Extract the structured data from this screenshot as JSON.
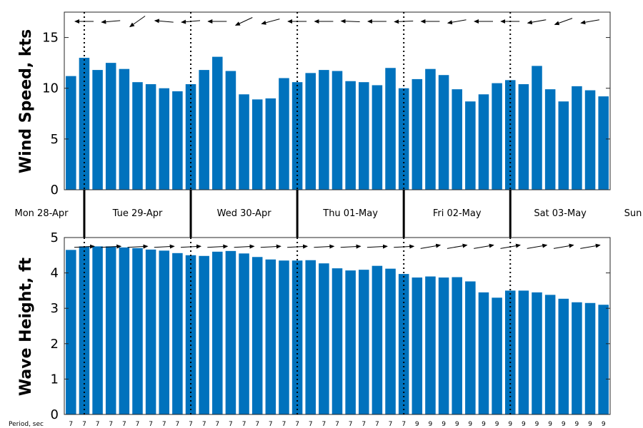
{
  "chart_data": [
    {
      "type": "bar",
      "ylabel": "Wind Speed, kts",
      "ylim": [
        0,
        17.5
      ],
      "yticks": [
        0,
        5,
        10,
        15
      ],
      "color": "#0072BD",
      "values": [
        11.2,
        13.0,
        11.8,
        12.5,
        11.9,
        10.6,
        10.4,
        10.0,
        9.7,
        10.4,
        11.8,
        13.1,
        11.7,
        9.4,
        8.9,
        9.0,
        11.0,
        10.6,
        11.5,
        11.8,
        11.7,
        10.7,
        10.6,
        10.3,
        12.0,
        10.0,
        10.9,
        11.9,
        11.3,
        9.9,
        8.7,
        9.4,
        10.5,
        10.8,
        10.4,
        12.2,
        9.9,
        8.7,
        10.2,
        9.8,
        9.2
      ],
      "direction_arrows": "westward, pointing left with slight tilt"
    },
    {
      "type": "bar",
      "ylabel": "Wave Height, ft",
      "ylim": [
        0,
        5
      ],
      "yticks": [
        0,
        1,
        2,
        3,
        4,
        5
      ],
      "color": "#0072BD",
      "values": [
        4.65,
        4.75,
        4.75,
        4.75,
        4.72,
        4.7,
        4.66,
        4.63,
        4.56,
        4.5,
        4.48,
        4.6,
        4.62,
        4.55,
        4.45,
        4.38,
        4.35,
        4.35,
        4.36,
        4.27,
        4.13,
        4.07,
        4.09,
        4.2,
        4.12,
        3.97,
        3.87,
        3.9,
        3.87,
        3.88,
        3.76,
        3.45,
        3.3,
        3.5,
        3.5,
        3.45,
        3.38,
        3.27,
        3.17,
        3.15,
        3.1
      ],
      "direction_arrows": "eastward, pointing right with slight upward tilt",
      "period_label": "Period, sec",
      "periods": [
        "7",
        "7",
        "7",
        "7",
        "7",
        "7",
        "7",
        "7",
        "7",
        "7",
        "7",
        "7",
        "7",
        "7",
        "7",
        "7",
        "7",
        "7",
        "7",
        "7",
        "7",
        "7",
        "7",
        "7",
        "7",
        "7",
        "9",
        "9",
        "9",
        "9",
        "9",
        "9",
        "9",
        "9",
        "9",
        "9",
        "9",
        "9",
        "9",
        "9",
        "9"
      ]
    }
  ],
  "days": [
    "Mon 28-Apr",
    "Tue 29-Apr",
    "Wed 30-Apr",
    "Thu 01-May",
    "Fri 02-May",
    "Sat 03-May",
    "Sun"
  ]
}
